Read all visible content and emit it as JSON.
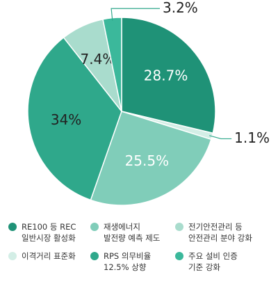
{
  "chart_data": {
    "type": "pie",
    "categories": [
      "RE100 등 REC\n일반시장 활성화",
      "이격거리 표준화",
      "재생에너지\n발전량 예측 제도",
      "RPS 의무비율\n12.5% 상향",
      "전기안전관리 등\n안전관리 분야 강화",
      "주요 설비 인증\n기준 강화"
    ],
    "values": [
      28.7,
      1.1,
      25.5,
      34,
      7.4,
      3.2
    ],
    "value_labels": [
      "28.7%",
      "1.1%",
      "25.5%",
      "34%",
      "7.4%",
      "3.2%"
    ],
    "colors": [
      "#1f9277",
      "#d3eee6",
      "#80cdb9",
      "#2fa88b",
      "#a9dccd",
      "#3bb89b"
    ],
    "value_label_colors": [
      "#ffffff",
      "#222222",
      "#ffffff",
      "#222222",
      "#222222",
      "#222222"
    ]
  }
}
